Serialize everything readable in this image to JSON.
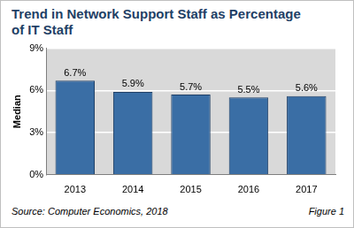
{
  "chart_data": {
    "type": "bar",
    "title": "Trend in Network Support Staff as Percentage of IT Staff",
    "y_label": "Median",
    "categories": [
      "2013",
      "2014",
      "2015",
      "2016",
      "2017"
    ],
    "values": [
      6.7,
      5.9,
      5.7,
      5.5,
      5.6
    ],
    "value_labels": [
      "6.7%",
      "5.9%",
      "5.7%",
      "5.5%",
      "5.6%"
    ],
    "data_labels": true,
    "color": "#3a6ea5",
    "ylim": [
      0,
      9
    ],
    "yticks": [
      {
        "value": 0,
        "label": "0%"
      },
      {
        "value": 3,
        "label": "3%"
      },
      {
        "value": 6,
        "label": "6%"
      },
      {
        "value": 9,
        "label": "9%"
      }
    ],
    "grid": true,
    "annotations": [
      "Source: Computer Economics, 2018",
      "Figure 1"
    ]
  }
}
